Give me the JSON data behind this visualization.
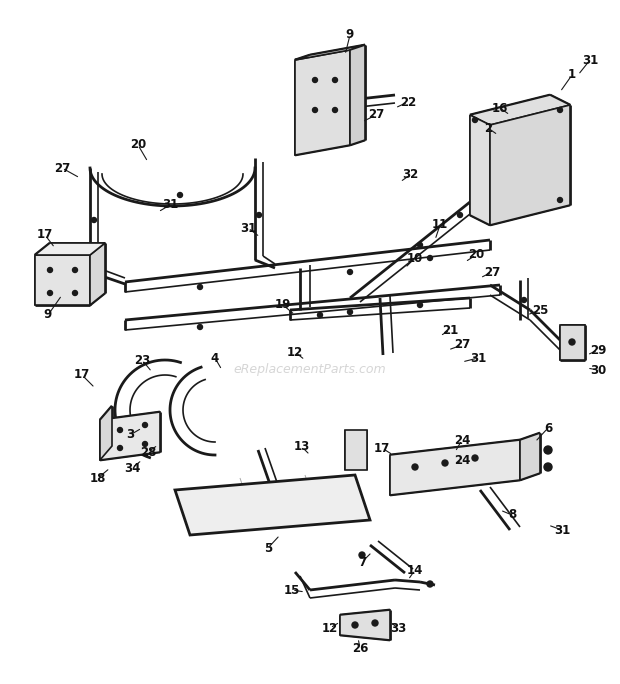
{
  "bg_color": "#ffffff",
  "line_color": "#1a1a1a",
  "label_color": "#111111",
  "watermark": "eReplacementParts.com",
  "watermark_color": "#bbbbbb",
  "fig_width": 6.2,
  "fig_height": 6.84,
  "dpi": 100
}
